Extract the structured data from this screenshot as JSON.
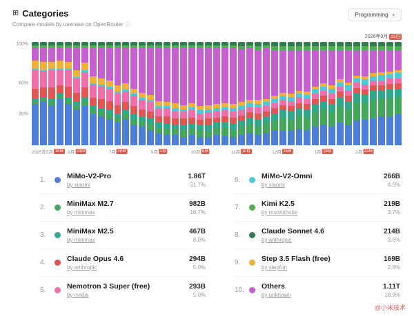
{
  "page": {
    "title": "Categories",
    "subtitle": "Compare models by usecase on OpenRouter",
    "filter_label": "Programming",
    "watermark": "@小米技术"
  },
  "icons": {
    "categories": "⊞",
    "info": "ⓘ",
    "chevron_down": "▾"
  },
  "chart_data": {
    "type": "bar",
    "variant": "stacked-100-percent",
    "x_count": 45,
    "x_unit": "week",
    "grid": false,
    "legend_position": "bottom-ranking-list",
    "end_date": {
      "prefix": "2026年3月",
      "day": "23日"
    },
    "y_axis": {
      "ticks": [
        {
          "label": "100%",
          "value": 100
        },
        {
          "label": "60%",
          "value": 60
        },
        {
          "label": "30%",
          "value": 30
        }
      ]
    },
    "x_axis": {
      "ticks": [
        {
          "prefix": "2025年5月",
          "day": "19日",
          "bar_index": 0
        },
        {
          "prefix": "6月",
          "day": "23日",
          "bar_index": 5
        },
        {
          "prefix": "7月",
          "day": "28日",
          "bar_index": 10
        },
        {
          "prefix": "9月",
          "day": "1日",
          "bar_index": 15
        },
        {
          "prefix": "10月",
          "day": "6日",
          "bar_index": 20
        },
        {
          "prefix": "11月",
          "day": "10日",
          "bar_index": 25
        },
        {
          "prefix": "12月",
          "day": "15日",
          "bar_index": 30
        },
        {
          "prefix": "1月",
          "day": "19日",
          "bar_index": 35
        },
        {
          "prefix": "2月",
          "day": "23日",
          "bar_index": 40
        }
      ]
    },
    "series": [
      {
        "name": "MiMo-V2-Pro",
        "color": "#4d7ed8",
        "values": [
          40,
          42,
          38,
          45,
          40,
          35,
          38,
          30,
          28,
          25,
          22,
          25,
          20,
          18,
          15,
          12,
          10,
          10,
          8,
          10,
          8,
          8,
          10,
          9,
          8,
          10,
          12,
          10,
          12,
          14,
          15,
          14,
          16,
          15,
          18,
          20,
          18,
          22,
          20,
          24,
          25,
          26,
          28,
          27,
          30
        ]
      },
      {
        "name": "MiniMax M2.7",
        "color": "#43a85c",
        "values": [
          3,
          3,
          4,
          3,
          4,
          4,
          5,
          4,
          5,
          5,
          5,
          6,
          5,
          6,
          6,
          5,
          6,
          6,
          7,
          6,
          7,
          6,
          7,
          8,
          7,
          8,
          9,
          8,
          10,
          10,
          12,
          11,
          13,
          12,
          14,
          15,
          14,
          16,
          15,
          17,
          16,
          18,
          17,
          18,
          17
        ]
      },
      {
        "name": "MiniMax M2.5",
        "color": "#2fa98c",
        "values": [
          2,
          2,
          3,
          2,
          3,
          3,
          3,
          4,
          3,
          4,
          4,
          4,
          5,
          4,
          5,
          5,
          5,
          4,
          5,
          5,
          5,
          6,
          5,
          6,
          6,
          6,
          6,
          7,
          6,
          7,
          7,
          8,
          7,
          8,
          8,
          8,
          8,
          9,
          8,
          9,
          8,
          9,
          8,
          9,
          8
        ]
      },
      {
        "name": "Claude Opus 4.6",
        "color": "#e25550",
        "values": [
          10,
          9,
          11,
          8,
          10,
          9,
          10,
          8,
          9,
          8,
          8,
          7,
          8,
          7,
          7,
          6,
          7,
          6,
          6,
          6,
          5,
          6,
          5,
          5,
          6,
          5,
          5,
          6,
          5,
          5,
          5,
          5,
          5,
          5,
          5,
          5,
          5,
          5,
          5,
          5,
          5,
          5,
          5,
          5,
          5
        ]
      },
      {
        "name": "Nemotron 3 Super (free)",
        "color": "#ee6fa9",
        "values": [
          18,
          16,
          17,
          15,
          16,
          14,
          15,
          13,
          12,
          12,
          11,
          10,
          10,
          9,
          9,
          8,
          8,
          7,
          7,
          7,
          6,
          6,
          6,
          6,
          6,
          6,
          5,
          6,
          5,
          5,
          5,
          5,
          5,
          5,
          5,
          5,
          5,
          5,
          5,
          5,
          5,
          5,
          5,
          5,
          5
        ]
      },
      {
        "name": "MiMo-V2-Omni",
        "color": "#4ec9d9",
        "values": [
          1,
          1,
          1,
          1,
          1,
          1,
          2,
          1,
          2,
          2,
          2,
          2,
          2,
          2,
          2,
          2,
          2,
          3,
          2,
          3,
          3,
          3,
          3,
          3,
          3,
          3,
          4,
          3,
          4,
          4,
          4,
          4,
          4,
          4,
          4,
          4,
          5,
          4,
          5,
          4,
          5,
          4,
          5,
          4,
          5
        ]
      },
      {
        "name": "Step 3.5 Flash (free)",
        "color": "#f0b13c",
        "values": [
          8,
          8,
          7,
          8,
          7,
          7,
          7,
          7,
          6,
          6,
          6,
          6,
          5,
          5,
          5,
          5,
          4,
          5,
          4,
          4,
          4,
          4,
          4,
          4,
          4,
          4,
          3,
          4,
          3,
          3,
          3,
          3,
          3,
          3,
          3,
          3,
          3,
          3,
          3,
          3,
          3,
          3,
          3,
          3,
          3
        ]
      },
      {
        "name": "Others",
        "color": "#c75fd0",
        "values": [
          13,
          14,
          14,
          13,
          14,
          22,
          15,
          28,
          29,
          32,
          36,
          35,
          39,
          43,
          45,
          51,
          52,
          53,
          55,
          53,
          56,
          55,
          54,
          53,
          54,
          51,
          50,
          48,
          49,
          44,
          41,
          42,
          39,
          40,
          35,
          32,
          34,
          28,
          31,
          24,
          25,
          22,
          21,
          20,
          19
        ]
      },
      {
        "name": "Kimi K2.5",
        "color": "#4caf50",
        "values": [
          2,
          2,
          2,
          2,
          2,
          2,
          2,
          2,
          3,
          2,
          3,
          2,
          3,
          3,
          3,
          3,
          3,
          3,
          3,
          3,
          3,
          3,
          3,
          3,
          3,
          3,
          3,
          4,
          3,
          4,
          4,
          4,
          4,
          4,
          4,
          4,
          4,
          4,
          4,
          4,
          4,
          4,
          4,
          4,
          4
        ]
      },
      {
        "name": "Claude Sonnet 4.6",
        "color": "#2e7d4f",
        "values": [
          3,
          3,
          3,
          3,
          3,
          3,
          3,
          3,
          3,
          3,
          3,
          3,
          3,
          3,
          3,
          3,
          3,
          3,
          3,
          3,
          3,
          3,
          3,
          3,
          3,
          4,
          3,
          4,
          3,
          4,
          4,
          4,
          4,
          4,
          4,
          4,
          4,
          4,
          4,
          4,
          4,
          4,
          4,
          4,
          4
        ]
      }
    ]
  },
  "ranking": {
    "left": [
      {
        "rank": "1.",
        "name": "MiMo-V2-Pro",
        "provider": "by xiaomi",
        "value": "1.86T",
        "share": "31.7%",
        "color": "#4d7ed8"
      },
      {
        "rank": "2.",
        "name": "MiniMax M2.7",
        "provider": "by minimax",
        "value": "982B",
        "share": "16.7%",
        "color": "#43a85c"
      },
      {
        "rank": "3.",
        "name": "MiniMax M2.5",
        "provider": "by minimax",
        "value": "467B",
        "share": "8.0%",
        "color": "#2fa98c"
      },
      {
        "rank": "4.",
        "name": "Claude Opus 4.6",
        "provider": "by anthropic",
        "value": "294B",
        "share": "5.0%",
        "color": "#e25550"
      },
      {
        "rank": "5.",
        "name": "Nemotron 3 Super (free)",
        "provider": "by nvidia",
        "value": "293B",
        "share": "5.0%",
        "color": "#ee6fa9"
      }
    ],
    "right": [
      {
        "rank": "6.",
        "name": "MiMo-V2-Omni",
        "provider": "by xiaomi",
        "value": "266B",
        "share": "4.5%",
        "color": "#4ec9d9"
      },
      {
        "rank": "7.",
        "name": "Kimi K2.5",
        "provider": "by moonshotai",
        "value": "219B",
        "share": "3.7%",
        "color": "#4caf50"
      },
      {
        "rank": "8.",
        "name": "Claude Sonnet 4.6",
        "provider": "by anthropic",
        "value": "214B",
        "share": "3.6%",
        "color": "#2e7d4f"
      },
      {
        "rank": "9.",
        "name": "Step 3.5 Flash (free)",
        "provider": "by stepfun",
        "value": "169B",
        "share": "2.9%",
        "color": "#f0b13c"
      },
      {
        "rank": "10.",
        "name": "Others",
        "provider": "by unknown",
        "value": "1.11T",
        "share": "18.9%",
        "color": "#c75fd0"
      }
    ]
  }
}
